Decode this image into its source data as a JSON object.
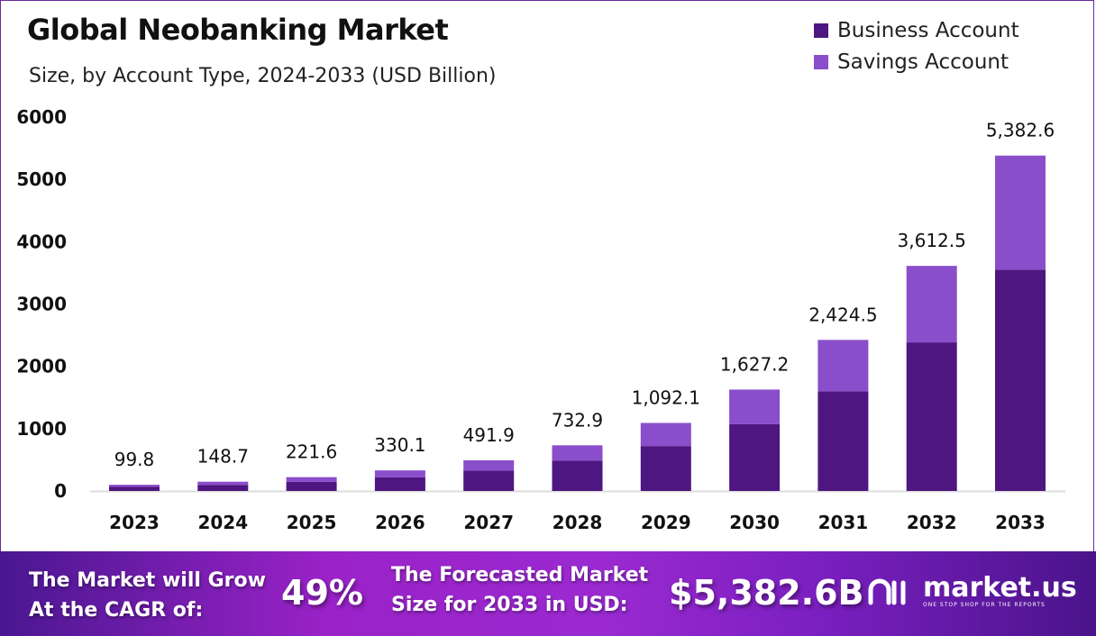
{
  "chart_data": {
    "type": "stacked-bar",
    "title": "Global Neobanking Market",
    "subtitle": "Size, by Account Type, 2024-2033 (USD Billion)",
    "categories": [
      "2023",
      "2024",
      "2025",
      "2026",
      "2027",
      "2028",
      "2029",
      "2030",
      "2031",
      "2032",
      "2033"
    ],
    "totals": [
      "99.8",
      "148.7",
      "221.6",
      "330.1",
      "491.9",
      "732.9",
      "1,092.1",
      "1,627.2",
      "2,424.5",
      "3,612.5",
      "5,382.6"
    ],
    "series": [
      {
        "name": "Business Account",
        "color": "#4e1681",
        "values": [
          65.9,
          98.1,
          146.3,
          217.9,
          324.7,
          483.7,
          720.8,
          1073.9,
          1600.2,
          2384.3,
          3552.5
        ]
      },
      {
        "name": "Savings Account",
        "color": "#8a4ecb",
        "values": [
          33.9,
          50.6,
          75.3,
          112.2,
          167.2,
          249.2,
          371.3,
          553.3,
          824.3,
          1228.2,
          1830.1
        ]
      }
    ],
    "yticks": [
      "0",
      "1000",
      "2000",
      "3000",
      "4000",
      "5000",
      "6000"
    ],
    "ylim": [
      0,
      6000
    ],
    "grid": false,
    "legend": "top-right"
  },
  "footer": {
    "cagr_label_1": "The Market will Grow",
    "cagr_label_2": "At the CAGR of:",
    "cagr_value": "49%",
    "forecast_label_1": "The Forecasted Market",
    "forecast_label_2": "Size for 2033 in USD:",
    "forecast_value": "$5,382.6B",
    "logo_name": "market.us",
    "logo_tagline": "ONE STOP SHOP FOR THE REPORTS"
  }
}
